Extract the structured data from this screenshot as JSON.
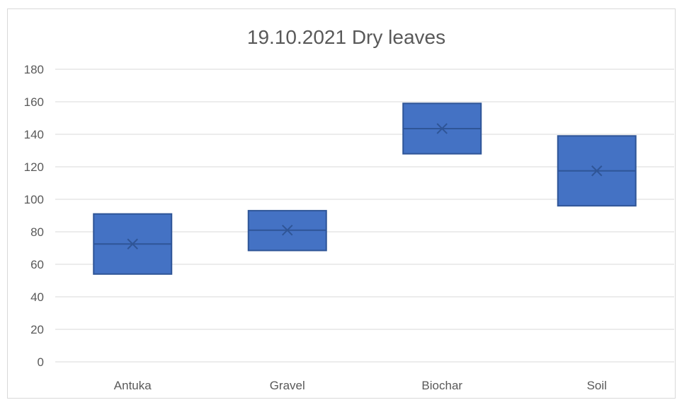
{
  "chart_data": {
    "type": "box",
    "title": "19.10.2021 Dry leaves",
    "xlabel": "",
    "ylabel": "",
    "ylim": [
      0,
      180
    ],
    "yticks": [
      0,
      20,
      40,
      60,
      80,
      100,
      120,
      140,
      160,
      180
    ],
    "grid": true,
    "legend": "none",
    "categories": [
      "Antuka",
      "Gravel",
      "Biochar",
      "Soil"
    ],
    "boxes": [
      {
        "category": "Antuka",
        "q1": 54,
        "median": 72.5,
        "q3": 91,
        "mean": 72.5
      },
      {
        "category": "Gravel",
        "q1": 68.5,
        "median": 81,
        "q3": 93,
        "mean": 81
      },
      {
        "category": "Biochar",
        "q1": 128,
        "median": 143.5,
        "q3": 159,
        "mean": 143.5
      },
      {
        "category": "Soil",
        "q1": 96,
        "median": 117.5,
        "q3": 139,
        "mean": 117.5
      }
    ],
    "colors": {
      "box_fill": "#4472c4",
      "box_stroke": "#2f5597",
      "grid": "#d9d9d9",
      "text": "#595959"
    }
  }
}
